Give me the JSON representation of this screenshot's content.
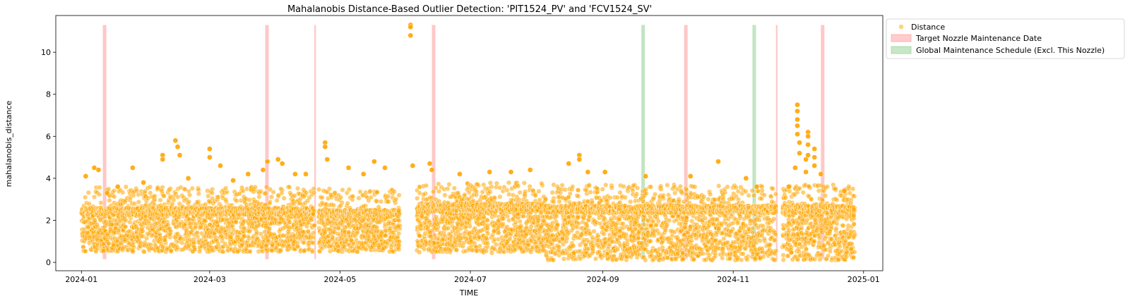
{
  "chart_data": {
    "type": "scatter",
    "title": "Mahalanobis Distance-Based Outlier Detection: 'PIT1524_PV' and 'FCV1524_SV'",
    "xlabel": "TIME",
    "ylabel": "mahalanobis_distance",
    "xlim": [
      "2023-12-20",
      "2025-01-10"
    ],
    "ylim": [
      -0.4,
      11.75
    ],
    "x_ticks": [
      "2024-01",
      "2024-03",
      "2024-05",
      "2024-07",
      "2024-09",
      "2024-11",
      "2025-01"
    ],
    "y_ticks": [
      0,
      2,
      4,
      6,
      8,
      10
    ],
    "grid": false,
    "legend": {
      "placement": "outside-top-right",
      "entries": [
        "Distance",
        "Target Nozzle Maintenance Date",
        "Global Maintenance Schedule (Excl. This Nozzle)"
      ]
    },
    "series": [
      {
        "name": "Distance",
        "kind": "scatter",
        "color": "#ffa500",
        "typical_band": [
          0.45,
          2.6
        ],
        "segments": [
          {
            "start": "2024-01-01",
            "end": "2024-04-18",
            "low": 0.5,
            "high": 2.6
          },
          {
            "start": "2024-04-21",
            "end": "2024-05-28",
            "low": 0.5,
            "high": 2.5
          },
          {
            "start": "2024-06-06",
            "end": "2024-08-04",
            "low": 0.45,
            "high": 2.8
          },
          {
            "start": "2024-08-05",
            "end": "2024-11-20",
            "low": 0.1,
            "high": 2.7
          },
          {
            "start": "2024-11-24",
            "end": "2024-12-27",
            "low": 0.1,
            "high": 2.7
          }
        ],
        "outliers": [
          {
            "x": "2024-01-03",
            "y": 4.1
          },
          {
            "x": "2024-01-07",
            "y": 4.5
          },
          {
            "x": "2024-01-09",
            "y": 4.4
          },
          {
            "x": "2024-01-13",
            "y": 3.3
          },
          {
            "x": "2024-01-18",
            "y": 3.6
          },
          {
            "x": "2024-01-25",
            "y": 4.5
          },
          {
            "x": "2024-01-30",
            "y": 3.8
          },
          {
            "x": "2024-02-08",
            "y": 5.1
          },
          {
            "x": "2024-02-08",
            "y": 4.9
          },
          {
            "x": "2024-02-14",
            "y": 5.8
          },
          {
            "x": "2024-02-15",
            "y": 5.5
          },
          {
            "x": "2024-02-16",
            "y": 5.1
          },
          {
            "x": "2024-02-20",
            "y": 4.0
          },
          {
            "x": "2024-03-01",
            "y": 5.4
          },
          {
            "x": "2024-03-01",
            "y": 5.0
          },
          {
            "x": "2024-03-06",
            "y": 4.6
          },
          {
            "x": "2024-03-12",
            "y": 3.9
          },
          {
            "x": "2024-03-19",
            "y": 4.2
          },
          {
            "x": "2024-03-26",
            "y": 4.4
          },
          {
            "x": "2024-03-28",
            "y": 4.8
          },
          {
            "x": "2024-04-02",
            "y": 4.9
          },
          {
            "x": "2024-04-04",
            "y": 4.7
          },
          {
            "x": "2024-04-10",
            "y": 4.2
          },
          {
            "x": "2024-04-15",
            "y": 4.2
          },
          {
            "x": "2024-04-24",
            "y": 5.7
          },
          {
            "x": "2024-04-24",
            "y": 5.5
          },
          {
            "x": "2024-04-25",
            "y": 4.9
          },
          {
            "x": "2024-05-05",
            "y": 4.5
          },
          {
            "x": "2024-05-12",
            "y": 4.2
          },
          {
            "x": "2024-05-17",
            "y": 4.8
          },
          {
            "x": "2024-05-22",
            "y": 4.5
          },
          {
            "x": "2024-06-03",
            "y": 11.3
          },
          {
            "x": "2024-06-03",
            "y": 11.2
          },
          {
            "x": "2024-06-03",
            "y": 10.8
          },
          {
            "x": "2024-06-04",
            "y": 4.6
          },
          {
            "x": "2024-06-12",
            "y": 4.7
          },
          {
            "x": "2024-06-13",
            "y": 4.4
          },
          {
            "x": "2024-06-26",
            "y": 4.2
          },
          {
            "x": "2024-07-10",
            "y": 4.3
          },
          {
            "x": "2024-07-20",
            "y": 4.3
          },
          {
            "x": "2024-07-29",
            "y": 4.4
          },
          {
            "x": "2024-08-16",
            "y": 4.7
          },
          {
            "x": "2024-08-21",
            "y": 5.1
          },
          {
            "x": "2024-08-21",
            "y": 4.9
          },
          {
            "x": "2024-08-25",
            "y": 4.3
          },
          {
            "x": "2024-09-02",
            "y": 4.3
          },
          {
            "x": "2024-09-21",
            "y": 4.1
          },
          {
            "x": "2024-10-12",
            "y": 4.1
          },
          {
            "x": "2024-10-25",
            "y": 4.8
          },
          {
            "x": "2024-11-07",
            "y": 4.0
          },
          {
            "x": "2024-11-12",
            "y": 3.6
          },
          {
            "x": "2024-11-27",
            "y": 3.6
          },
          {
            "x": "2024-11-30",
            "y": 4.5
          },
          {
            "x": "2024-12-01",
            "y": 7.5
          },
          {
            "x": "2024-12-01",
            "y": 7.2
          },
          {
            "x": "2024-12-01",
            "y": 6.8
          },
          {
            "x": "2024-12-01",
            "y": 6.5
          },
          {
            "x": "2024-12-01",
            "y": 6.1
          },
          {
            "x": "2024-12-02",
            "y": 5.7
          },
          {
            "x": "2024-12-02",
            "y": 5.2
          },
          {
            "x": "2024-12-05",
            "y": 4.9
          },
          {
            "x": "2024-12-05",
            "y": 4.3
          },
          {
            "x": "2024-12-06",
            "y": 6.2
          },
          {
            "x": "2024-12-06",
            "y": 6.0
          },
          {
            "x": "2024-12-06",
            "y": 5.6
          },
          {
            "x": "2024-12-06",
            "y": 5.1
          },
          {
            "x": "2024-12-09",
            "y": 5.4
          },
          {
            "x": "2024-12-09",
            "y": 5.0
          },
          {
            "x": "2024-12-09",
            "y": 4.6
          },
          {
            "x": "2024-12-12",
            "y": 4.2
          },
          {
            "x": "2024-12-23",
            "y": 3.4
          }
        ]
      },
      {
        "name": "Target Nozzle Maintenance Date",
        "kind": "span",
        "color": "#ff9999",
        "ymax": 11.3,
        "spans": [
          [
            "2024-01-11",
            "2024-01-12"
          ],
          [
            "2024-03-27",
            "2024-03-28"
          ],
          [
            "2024-04-19",
            "2024-04-19"
          ],
          [
            "2024-06-13",
            "2024-06-14"
          ],
          [
            "2024-10-09",
            "2024-10-10"
          ],
          [
            "2024-11-21",
            "2024-11-21"
          ],
          [
            "2024-12-12",
            "2024-12-13"
          ]
        ]
      },
      {
        "name": "Global Maintenance Schedule (Excl. This Nozzle)",
        "kind": "span",
        "color": "#90d090",
        "ymax": 11.3,
        "spans": [
          [
            "2024-09-19",
            "2024-09-20"
          ],
          [
            "2024-11-10",
            "2024-11-11"
          ]
        ]
      }
    ]
  }
}
